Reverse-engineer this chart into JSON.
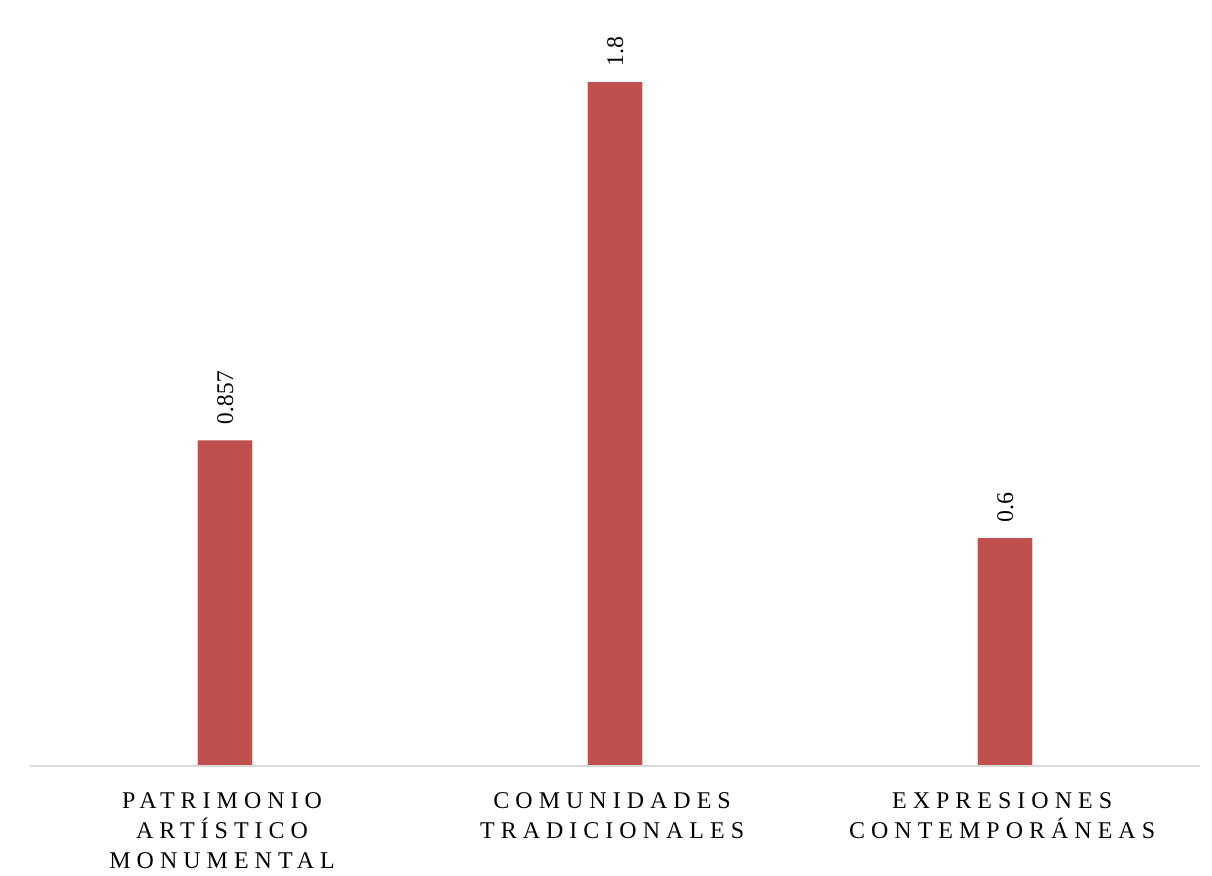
{
  "chart_data": {
    "type": "bar",
    "categories": [
      "PATRIMONIO ARTÍSTICO MONUMENTAL",
      "COMUNIDADES TRADICIONALES",
      "EXPRESIONES CONTEMPORÁNEAS"
    ],
    "values": [
      0.857,
      1.8,
      0.6
    ],
    "color": "#c0504d",
    "data_labels": true
  }
}
